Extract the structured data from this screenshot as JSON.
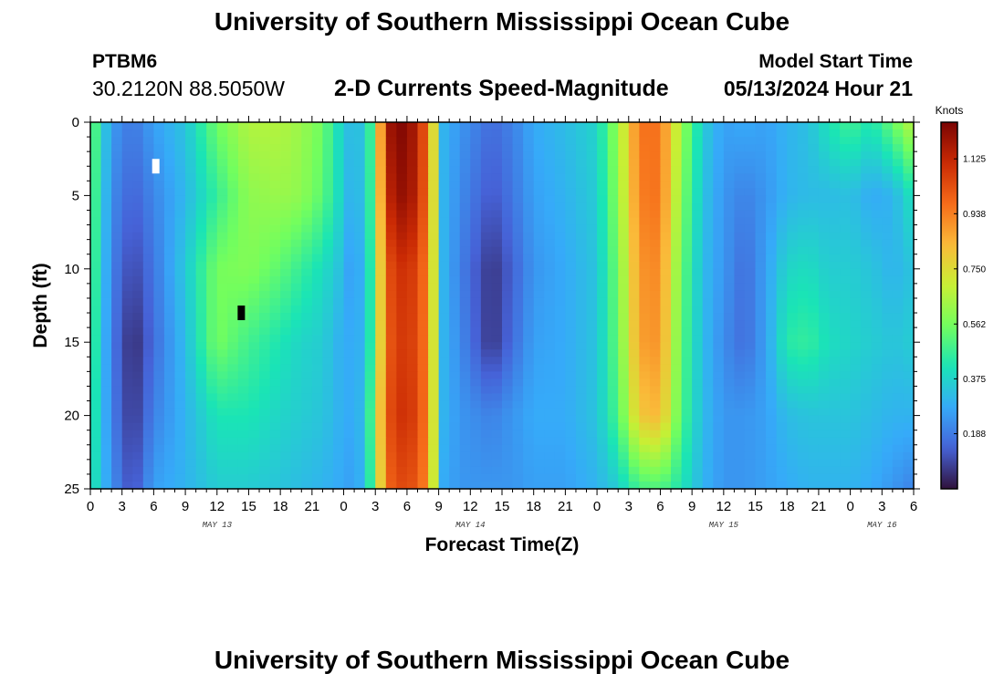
{
  "header": {
    "title": "University of Southern Mississippi Ocean Cube",
    "station_id": "PTBM6",
    "coords": "30.2120N  88.5050W",
    "subtitle": "2-D Currents Speed-Magnitude",
    "model_start_label": "Model Start Time",
    "model_start_value": "05/13/2024 Hour 21"
  },
  "footer": {
    "title": "University of Southern Mississippi Ocean Cube"
  },
  "chart_data": {
    "type": "heatmap",
    "title": "2-D Currents Speed-Magnitude",
    "xlabel": "Forecast Time(Z)",
    "ylabel": "Depth (ft)",
    "x_tick_labels": [
      "0",
      "3",
      "6",
      "9",
      "12",
      "15",
      "18",
      "21",
      "0",
      "3",
      "6",
      "9",
      "12",
      "15",
      "18",
      "21",
      "0",
      "3",
      "6",
      "9",
      "12",
      "15",
      "18",
      "21",
      "0",
      "3",
      "6"
    ],
    "x_range_hours": [
      0,
      78
    ],
    "date_labels": [
      {
        "label": "MAY 13",
        "hour": 12
      },
      {
        "label": "MAY 14",
        "hour": 36
      },
      {
        "label": "MAY 15",
        "hour": 60
      },
      {
        "label": "MAY 16",
        "hour": 75
      }
    ],
    "y_ticks": [
      0,
      5,
      10,
      15,
      20,
      25
    ],
    "ylim": [
      0,
      25
    ],
    "y_inverted": true,
    "colorbar": {
      "unit": "Knots",
      "ticks": [
        0.188,
        0.375,
        0.562,
        0.75,
        0.938,
        1.125
      ],
      "range": [
        0,
        1.25
      ],
      "colors": [
        "#30123b",
        "#4662d7",
        "#36aaf9",
        "#1ae4b6",
        "#72fe5e",
        "#c8ef34",
        "#faba39",
        "#f66b19",
        "#ca2a04",
        "#7a0403"
      ]
    },
    "speed_field": {
      "anchor_hours": [
        0,
        0.6,
        2,
        4,
        6,
        9,
        12,
        15,
        18,
        20,
        22,
        23.5,
        24.6,
        26,
        27,
        28,
        30,
        32,
        33.5,
        35,
        38,
        40,
        42,
        45,
        48,
        50,
        52,
        54,
        56,
        58,
        60,
        62,
        64,
        66,
        68,
        70,
        72,
        74,
        76,
        78
      ],
      "anchor_depths_ft": [
        0,
        5,
        10,
        15,
        20,
        25
      ],
      "speed_knots_by_depth": [
        [
          0.62,
          0.46,
          0.25,
          0.18,
          0.26,
          0.34,
          0.55,
          0.66,
          0.66,
          0.62,
          0.55,
          0.4,
          0.32,
          0.34,
          0.58,
          1.18,
          1.25,
          0.98,
          0.3,
          0.24,
          0.16,
          0.2,
          0.28,
          0.32,
          0.38,
          0.62,
          0.96,
          0.96,
          0.62,
          0.36,
          0.26,
          0.28,
          0.26,
          0.3,
          0.33,
          0.42,
          0.48,
          0.42,
          0.54,
          0.68
        ],
        [
          0.55,
          0.45,
          0.22,
          0.14,
          0.21,
          0.31,
          0.46,
          0.6,
          0.62,
          0.6,
          0.52,
          0.4,
          0.3,
          0.33,
          0.58,
          1.12,
          1.23,
          0.97,
          0.3,
          0.22,
          0.12,
          0.18,
          0.26,
          0.3,
          0.36,
          0.6,
          0.94,
          0.96,
          0.58,
          0.34,
          0.24,
          0.2,
          0.24,
          0.3,
          0.32,
          0.32,
          0.33,
          0.28,
          0.3,
          0.42
        ],
        [
          0.5,
          0.44,
          0.2,
          0.09,
          0.18,
          0.35,
          0.56,
          0.58,
          0.52,
          0.46,
          0.4,
          0.34,
          0.26,
          0.3,
          0.56,
          1.02,
          1.12,
          0.94,
          0.3,
          0.2,
          0.06,
          0.14,
          0.24,
          0.28,
          0.34,
          0.56,
          0.9,
          0.92,
          0.54,
          0.32,
          0.24,
          0.16,
          0.26,
          0.38,
          0.4,
          0.36,
          0.36,
          0.34,
          0.3,
          0.34
        ],
        [
          0.48,
          0.42,
          0.19,
          0.04,
          0.16,
          0.32,
          0.56,
          0.48,
          0.42,
          0.38,
          0.36,
          0.3,
          0.28,
          0.3,
          0.56,
          1.0,
          1.1,
          0.94,
          0.3,
          0.22,
          0.06,
          0.16,
          0.26,
          0.28,
          0.34,
          0.54,
          0.88,
          0.9,
          0.52,
          0.32,
          0.22,
          0.16,
          0.26,
          0.44,
          0.46,
          0.4,
          0.38,
          0.36,
          0.34,
          0.36
        ],
        [
          0.46,
          0.4,
          0.2,
          0.06,
          0.2,
          0.3,
          0.42,
          0.42,
          0.38,
          0.36,
          0.34,
          0.3,
          0.28,
          0.32,
          0.62,
          1.02,
          1.12,
          0.94,
          0.3,
          0.24,
          0.2,
          0.24,
          0.28,
          0.28,
          0.34,
          0.5,
          0.8,
          0.84,
          0.5,
          0.32,
          0.24,
          0.24,
          0.26,
          0.32,
          0.34,
          0.34,
          0.34,
          0.32,
          0.3,
          0.3
        ],
        [
          0.44,
          0.38,
          0.23,
          0.1,
          0.26,
          0.3,
          0.36,
          0.36,
          0.34,
          0.32,
          0.3,
          0.28,
          0.26,
          0.3,
          0.58,
          0.98,
          1.06,
          0.92,
          0.28,
          0.24,
          0.24,
          0.24,
          0.26,
          0.26,
          0.3,
          0.36,
          0.48,
          0.5,
          0.42,
          0.3,
          0.24,
          0.24,
          0.26,
          0.28,
          0.3,
          0.3,
          0.3,
          0.28,
          0.24,
          0.2
        ]
      ],
      "masked_cells": [
        {
          "hour": 6.2,
          "depth_ft": 3,
          "color": "#ffffff"
        },
        {
          "hour": 14.3,
          "depth_ft": 13,
          "color": "#000000"
        }
      ]
    }
  }
}
